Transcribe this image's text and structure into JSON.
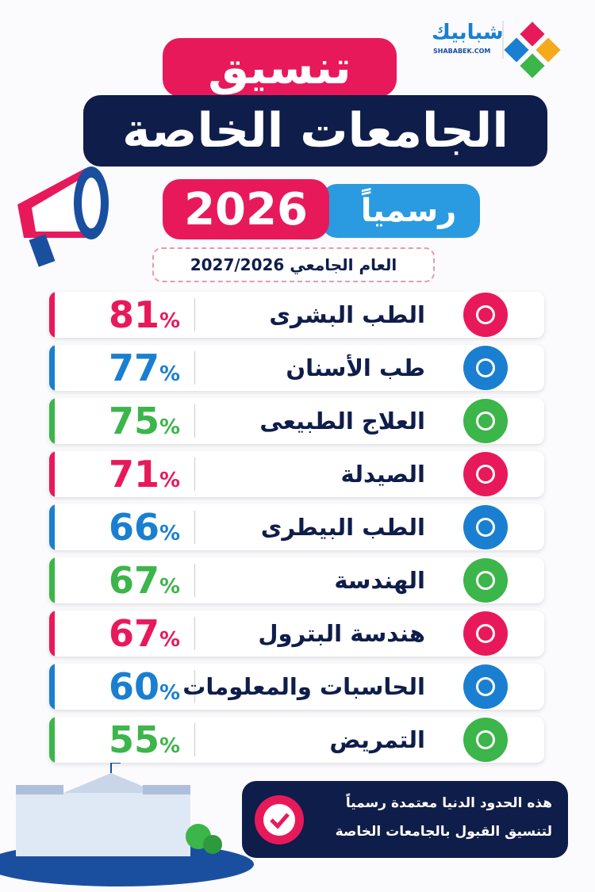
{
  "logo": {
    "name": "شبابيك",
    "site": "SHABABEK.COM"
  },
  "header": {
    "line1": "تنسيق",
    "line2": "الجامعات الخاصة",
    "year": "2026",
    "badge": "رسمياً",
    "academic_year": "العام الجامعي 2027/2026"
  },
  "table": {
    "rows": [
      {
        "name": "الطب البشرى",
        "value": 81,
        "unit": "%"
      },
      {
        "name": "طب الأسنان",
        "value": 77,
        "unit": "%"
      },
      {
        "name": "العلاج الطبيعى",
        "value": 75,
        "unit": "%"
      },
      {
        "name": "الصيدلة",
        "value": 71,
        "unit": "%"
      },
      {
        "name": "الطب البيطرى",
        "value": 66,
        "unit": "%"
      },
      {
        "name": "الهندسة",
        "value": 67,
        "unit": "%"
      },
      {
        "name": "هندسة البترول",
        "value": 67,
        "unit": "%"
      },
      {
        "name": "الحاسبات والمعلومات",
        "value": 60,
        "unit": "%"
      },
      {
        "name": "التمريض",
        "value": 55,
        "unit": "%"
      }
    ]
  },
  "footer": {
    "line1": "هذه الحدود الدنيا معتمدة رسمياً",
    "line2": "لتنسيق القبول بالجامعات الخاصة"
  }
}
